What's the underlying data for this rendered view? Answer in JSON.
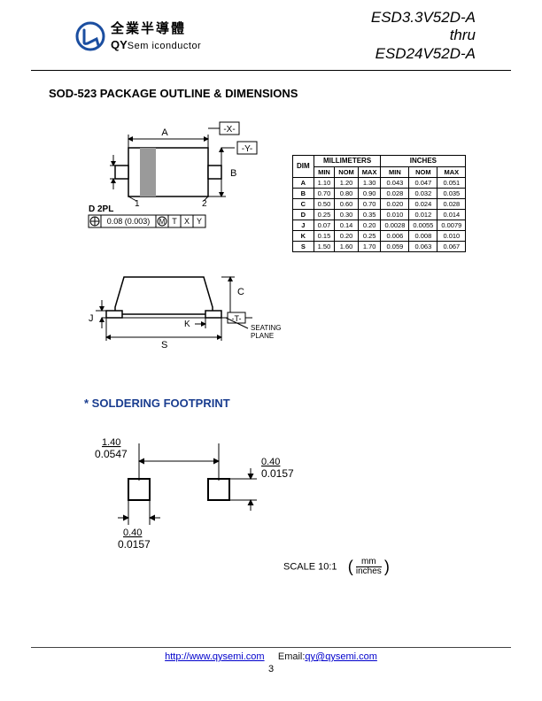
{
  "header": {
    "company_cn": "全業半導體",
    "company_en_bold": "QY",
    "company_en_rest": "Sem iconductor",
    "part_line1": "ESD3.3V52D-A",
    "part_line2": "thru",
    "part_line3": "ESD24V52D-A"
  },
  "section1_title": "SOD-523 PACKAGE OUTLINE & DIMENSIONS",
  "top_diagram": {
    "label_A": "A",
    "label_B": "B",
    "label_X": "-X-",
    "label_Y": "-Y-",
    "label_1": "1",
    "label_2": "2",
    "label_D2PL": "D 2PL",
    "gd_val": "0.08 (0.003)",
    "gd_M": "M",
    "gd_T": "T",
    "gd_X": "X",
    "gd_Y": "Y"
  },
  "side_diagram": {
    "label_J": "J",
    "label_K": "K",
    "label_S": "S",
    "label_C": "C",
    "label_T": "-T-",
    "seating": "SEATING",
    "plane": "PLANE"
  },
  "dim_table": {
    "hdr_mm": "MILLIMETERS",
    "hdr_in": "INCHES",
    "col_dim": "DIM",
    "col_min": "MIN",
    "col_nom": "NOM",
    "col_max": "MAX",
    "rows": [
      {
        "d": "A",
        "mm": [
          "1.10",
          "1.20",
          "1.30"
        ],
        "in": [
          "0.043",
          "0.047",
          "0.051"
        ]
      },
      {
        "d": "B",
        "mm": [
          "0.70",
          "0.80",
          "0.90"
        ],
        "in": [
          "0.028",
          "0.032",
          "0.035"
        ]
      },
      {
        "d": "C",
        "mm": [
          "0.50",
          "0.60",
          "0.70"
        ],
        "in": [
          "0.020",
          "0.024",
          "0.028"
        ]
      },
      {
        "d": "D",
        "mm": [
          "0.25",
          "0.30",
          "0.35"
        ],
        "in": [
          "0.010",
          "0.012",
          "0.014"
        ]
      },
      {
        "d": "J",
        "mm": [
          "0.07",
          "0.14",
          "0.20"
        ],
        "in": [
          "0.0028",
          "0.0055",
          "0.0079"
        ]
      },
      {
        "d": "K",
        "mm": [
          "0.15",
          "0.20",
          "0.25"
        ],
        "in": [
          "0.006",
          "0.008",
          "0.010"
        ]
      },
      {
        "d": "S",
        "mm": [
          "1.50",
          "1.60",
          "1.70"
        ],
        "in": [
          "0.059",
          "0.063",
          "0.067"
        ]
      }
    ]
  },
  "soldering_title": "* SOLDERING FOOTPRINT",
  "footprint": {
    "d140_mm": "1.40",
    "d140_in": "0.0547",
    "d040_mm": "0.40",
    "d040_in": "0.0157",
    "d040b_mm": "0.40",
    "d040b_in": "0.0157"
  },
  "scale": {
    "label": "SCALE 10:1",
    "num": "mm",
    "den": "inches"
  },
  "footer": {
    "url_label": "http://www.qysemi.com",
    "email_prefix": "Email:",
    "email": "qy@qysemi.com",
    "page": "3"
  },
  "colors": {
    "blue": "#1a3d8f",
    "logo_blue": "#1b4ea0",
    "gray_band": "#9a9a9a"
  }
}
